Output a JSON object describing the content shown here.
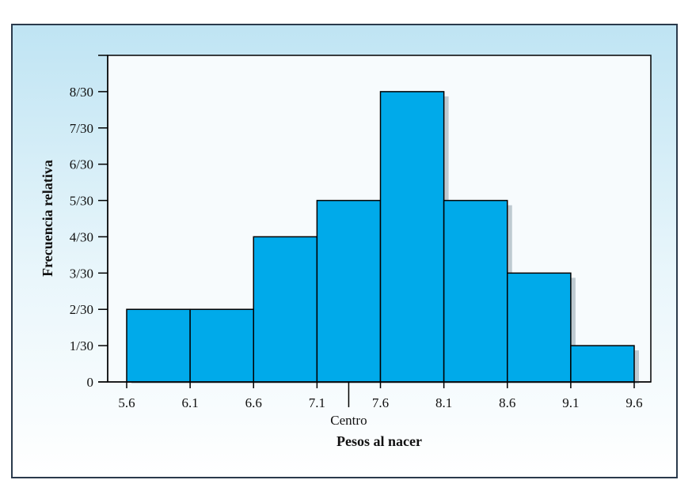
{
  "chart_data": {
    "type": "bar",
    "subtype": "histogram",
    "xlabel": "Pesos al nacer",
    "ylabel": "Frecuencia relativa",
    "bin_edges": [
      5.6,
      6.1,
      6.6,
      7.1,
      7.6,
      8.1,
      8.6,
      9.1,
      9.6
    ],
    "x_tick_labels": [
      "5.6",
      "6.1",
      "6.6",
      "7.1",
      "7.6",
      "8.1",
      "8.6",
      "9.1",
      "9.6"
    ],
    "values": [
      2,
      2,
      4,
      5,
      8,
      5,
      3,
      1
    ],
    "y_tick_values": [
      0,
      1,
      2,
      3,
      4,
      5,
      6,
      7,
      8
    ],
    "y_tick_labels": [
      "0",
      "1/30",
      "2/30",
      "3/30",
      "4/30",
      "5/30",
      "6/30",
      "7/30",
      "8/30"
    ],
    "ylim": [
      0,
      9
    ],
    "annotation": {
      "label": "Centro",
      "x": 7.35
    },
    "bar_color": "#00aaea",
    "grid": false
  }
}
